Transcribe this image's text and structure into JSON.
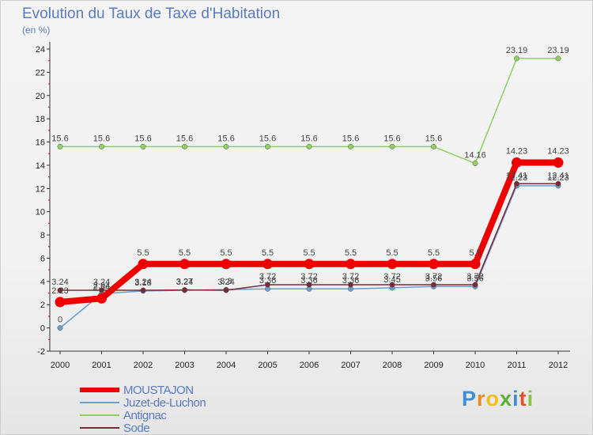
{
  "chart_data": {
    "type": "line",
    "title": "Evolution du Taux de Taxe d'Habitation",
    "subtitle": "(en %)",
    "categories": [
      "2000",
      "2001",
      "2002",
      "2003",
      "2004",
      "2005",
      "2006",
      "2007",
      "2008",
      "2009",
      "2010",
      "2011",
      "2012"
    ],
    "yticks": [
      "24",
      "22",
      "20",
      "18",
      "16",
      "14",
      "12",
      "10",
      "8",
      "6",
      "4",
      "2",
      "0",
      "-2"
    ],
    "ylim": [
      -2,
      24
    ],
    "series": [
      {
        "name": "Antignac",
        "color": "#90d060",
        "values": [
          15.6,
          15.6,
          15.6,
          15.6,
          15.6,
          15.6,
          15.6,
          15.6,
          15.6,
          15.6,
          14.16,
          23.19,
          23.19
        ],
        "labels": [
          "15.6",
          "15.6",
          "15.6",
          "15.6",
          "15.6",
          "15.6",
          "15.6",
          "15.6",
          "15.6",
          "15.6",
          "14.16",
          "23.19",
          "23.19"
        ]
      },
      {
        "name": "Juzet-de-Luchon",
        "color": "#6a9ecf",
        "values": [
          0,
          2.94,
          3.18,
          3.24,
          3.3,
          3.36,
          3.36,
          3.36,
          3.45,
          3.56,
          3.56,
          12.23,
          12.23
        ],
        "labels": [
          "0",
          "2.94",
          "3.18",
          "3.24",
          "3.3",
          "3.36",
          "3.36",
          "3.36",
          "3.45",
          "3.56",
          "3.56",
          "12.23",
          "12.23"
        ]
      },
      {
        "name": "Sode",
        "color": "#7a2a35",
        "values": [
          3.24,
          3.24,
          3.24,
          3.27,
          3.24,
          3.72,
          3.72,
          3.72,
          3.72,
          3.72,
          3.72,
          12.41,
          12.41
        ],
        "labels": [
          "3.24",
          "3.24",
          "3.24",
          "3.27",
          "3.24",
          "3.72",
          "3.72",
          "3.72",
          "3.72",
          "3.72",
          "3.72",
          "12.41",
          "12.41"
        ]
      },
      {
        "name": "MOUSTAJON",
        "color": "#ee0000",
        "values": [
          2.23,
          2.54,
          5.5,
          5.5,
          5.5,
          5.5,
          5.5,
          5.5,
          5.5,
          5.5,
          5.5,
          14.23,
          14.23
        ],
        "labels": [
          "2.23",
          "2.54",
          "5.5",
          "5.5",
          "5.5",
          "5.5",
          "5.5",
          "5.5",
          "5.5",
          "5.5",
          "5.5",
          "14.23",
          "14.23"
        ]
      }
    ],
    "legend": [
      {
        "name": "MOUSTAJON",
        "color": "#ee0000"
      },
      {
        "name": "Juzet-de-Luchon",
        "color": "#6a9ecf"
      },
      {
        "name": "Antignac",
        "color": "#90d060"
      },
      {
        "name": "Sode",
        "color": "#7a2a35"
      }
    ],
    "grid": false
  },
  "brand": {
    "letters": [
      "P",
      "r",
      "o",
      "x",
      "i",
      "t",
      "i"
    ],
    "colors": [
      "#3c8ed6",
      "#f08a1c",
      "#f2c01c",
      "#5ab034",
      "#3c8ed6",
      "#e8502a",
      "#8ac43e"
    ]
  }
}
